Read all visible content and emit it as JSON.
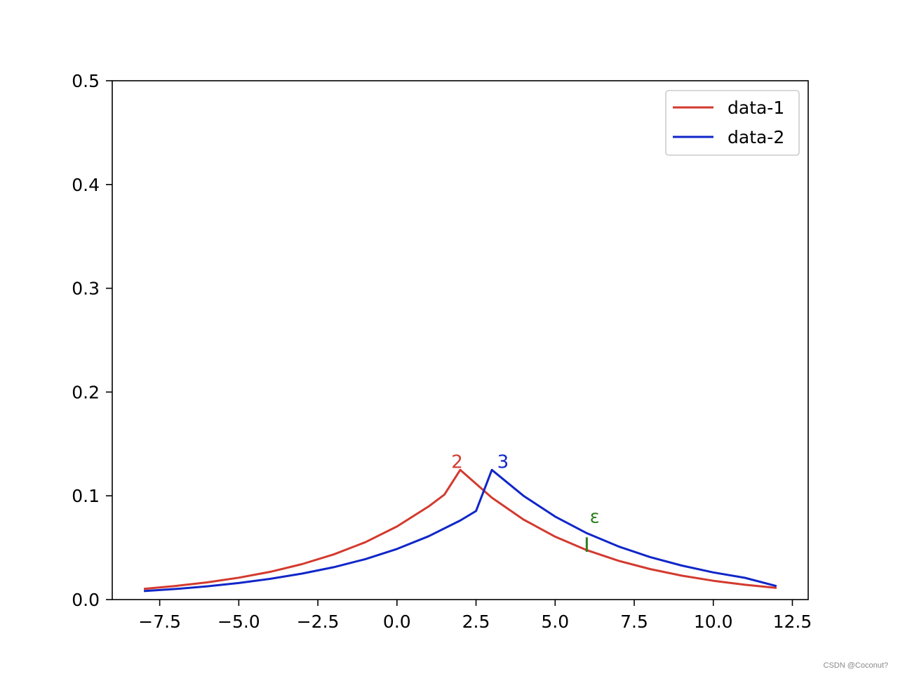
{
  "chart_data": {
    "type": "line",
    "title": "",
    "xlabel": "",
    "ylabel": "",
    "xlim": [
      -9,
      13
    ],
    "ylim": [
      0,
      0.5
    ],
    "x_ticks": [
      -7.5,
      -5.0,
      -2.5,
      0.0,
      2.5,
      5.0,
      7.5,
      10.0,
      12.5
    ],
    "x_tick_labels": [
      "−7.5",
      "−5.0",
      "−2.5",
      "0.0",
      "2.5",
      "5.0",
      "7.5",
      "10.0",
      "12.5"
    ],
    "y_ticks": [
      0.0,
      0.1,
      0.2,
      0.3,
      0.4,
      0.5
    ],
    "y_tick_labels": [
      "0.0",
      "0.1",
      "0.2",
      "0.3",
      "0.4",
      "0.5"
    ],
    "grid": false,
    "legend_position": "top-right",
    "series": [
      {
        "name": "data-1",
        "color": "#d33a2f",
        "x": [
          -8,
          -7,
          -6,
          -5,
          -4,
          -3,
          -2,
          -1,
          0,
          1,
          1.5,
          2,
          3,
          4,
          5,
          6,
          7,
          8,
          9,
          10,
          11,
          12
        ],
        "y": [
          0.0103,
          0.0131,
          0.0166,
          0.0211,
          0.0268,
          0.0342,
          0.0435,
          0.0553,
          0.0704,
          0.0897,
          0.1012,
          0.125,
          0.0982,
          0.0771,
          0.0606,
          0.0476,
          0.0374,
          0.0294,
          0.0231,
          0.0181,
          0.0143,
          0.0112
        ]
      },
      {
        "name": "data-2",
        "color": "#1026c8",
        "x": [
          -8,
          -7,
          -6,
          -5,
          -4,
          -3,
          -2,
          -1,
          0,
          1,
          2,
          2.5,
          3,
          4,
          5,
          6,
          7,
          8,
          9,
          10,
          11,
          12
        ],
        "y": [
          0.0082,
          0.0102,
          0.0128,
          0.016,
          0.02,
          0.025,
          0.0312,
          0.039,
          0.0488,
          0.061,
          0.0762,
          0.0853,
          0.125,
          0.1,
          0.08,
          0.064,
          0.0512,
          0.041,
          0.0328,
          0.0262,
          0.021,
          0.013
        ]
      }
    ],
    "annotations": [
      {
        "text": "2",
        "x": 1.9,
        "y": 0.127,
        "color": "#d33a2f"
      },
      {
        "text": "3",
        "x": 3.35,
        "y": 0.127,
        "color": "#1026c8"
      },
      {
        "text": "ε",
        "x": 6.25,
        "y": 0.074,
        "color": "#2e7d1f"
      }
    ],
    "epsilon_marker": {
      "x": 6.0,
      "y_from": 0.046,
      "y_to": 0.06,
      "color": "#2e7d1f"
    }
  },
  "watermark": "CSDN @Coconut?"
}
